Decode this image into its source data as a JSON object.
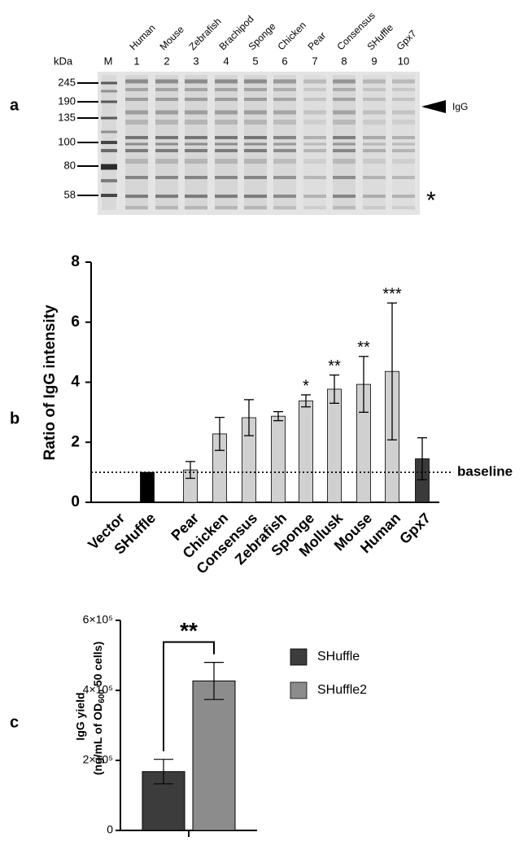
{
  "panel_labels": [
    "a",
    "b",
    "c"
  ],
  "gel": {
    "unit_label": "kDa",
    "marker_lane": "M",
    "lanes": [
      {
        "name": "Human",
        "number": "1"
      },
      {
        "name": "Mouse",
        "number": "2"
      },
      {
        "name": "Zebrafish",
        "number": "3"
      },
      {
        "name": "Brachipod",
        "number": "4"
      },
      {
        "name": "Sponge",
        "number": "5"
      },
      {
        "name": "Chicken",
        "number": "6"
      },
      {
        "name": "Pear",
        "number": "7"
      },
      {
        "name": "Consensus",
        "number": "8"
      },
      {
        "name": "SHuffle",
        "number": "9"
      },
      {
        "name": "Gpx7",
        "number": "10"
      }
    ],
    "markers": [
      245,
      190,
      135,
      100,
      80,
      58
    ],
    "arrow_label": "IgG",
    "asterisk": "*"
  },
  "chart_data": [
    {
      "type": "bar",
      "ylabel": "Ratio of IgG intensity",
      "categories": [
        "Vector",
        "SHuffle",
        "Pear",
        "Chicken",
        "Consensus",
        "Zebrafish",
        "Sponge",
        "Mollusk",
        "Mouse",
        "Human",
        "Gpx7"
      ],
      "values": [
        0,
        1,
        1.08,
        2.28,
        2.82,
        2.87,
        3.38,
        3.77,
        3.93,
        4.36,
        1.45
      ],
      "errors": [
        null,
        null,
        0.28,
        0.55,
        0.6,
        0.15,
        0.2,
        0.47,
        0.93,
        2.28,
        0.7
      ],
      "colors": [
        "#000000",
        "#000000",
        "#d0d0d0",
        "#d0d0d0",
        "#d0d0d0",
        "#d0d0d0",
        "#d0d0d0",
        "#d0d0d0",
        "#d0d0d0",
        "#d0d0d0",
        "#3a3a3a"
      ],
      "significance": [
        null,
        null,
        null,
        null,
        null,
        null,
        "*",
        "**",
        "**",
        "***",
        null
      ],
      "baseline": {
        "value": 1,
        "label": "baseline"
      },
      "ylim": [
        0,
        8
      ],
      "yticks": [
        0,
        2,
        4,
        6,
        8
      ]
    },
    {
      "type": "bar",
      "ylabel": [
        "IgG yield",
        "(ng/mL of OD",
        "600",
        " 50 cells)"
      ],
      "categories": [
        null
      ],
      "series": [
        {
          "name": "SHuffle",
          "color": "#3c3c3c",
          "values": [
            168000
          ],
          "errors": [
            35000
          ]
        },
        {
          "name": "SHuffle2",
          "color": "#8c8c8c",
          "values": [
            427000
          ],
          "errors": [
            53000
          ]
        }
      ],
      "significance": "**",
      "legend": "upper right",
      "ylim": [
        0,
        600000
      ],
      "yticks": [
        {
          "value": 0,
          "label": "0"
        },
        {
          "value": 200000,
          "label": "2×10⁵"
        },
        {
          "value": 400000,
          "label": "4×10⁵"
        },
        {
          "value": 600000,
          "label": "6×10⁵"
        }
      ]
    }
  ]
}
